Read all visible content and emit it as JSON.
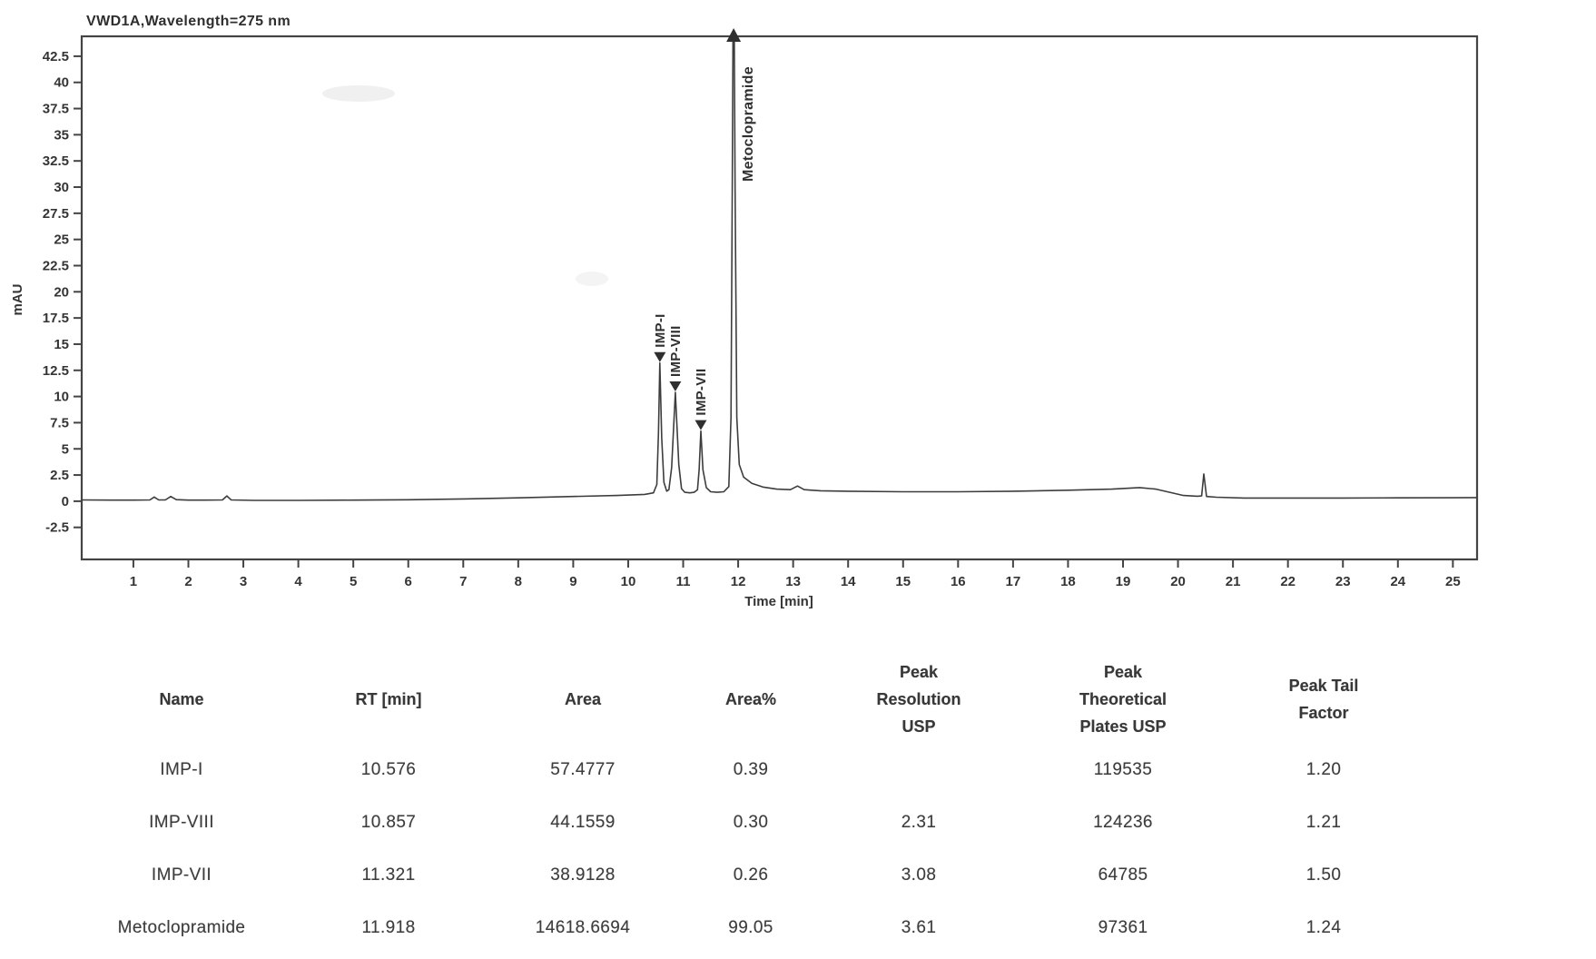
{
  "chart_data": {
    "type": "line",
    "title": "VWD1A,Wavelength=275 nm",
    "xlabel": "Time [min]",
    "ylabel": "mAU",
    "x_domain": [
      0.06,
      25.44
    ],
    "y_domain": [
      -5.56,
      44.4
    ],
    "x_ticks": [
      1,
      2,
      3,
      4,
      5,
      6,
      7,
      8,
      9,
      10,
      11,
      12,
      13,
      14,
      15,
      16,
      17,
      18,
      19,
      20,
      21,
      22,
      23,
      24,
      25
    ],
    "y_ticks": [
      -2.5,
      0,
      2.5,
      5,
      7.5,
      10,
      12.5,
      15,
      17.5,
      20,
      22.5,
      25,
      27.5,
      30,
      32.5,
      35,
      37.5,
      40,
      42.5
    ],
    "grid": false,
    "legend": "none",
    "trace": [
      [
        0.06,
        0.12
      ],
      [
        0.6,
        0.1
      ],
      [
        1.0,
        0.1
      ],
      [
        1.3,
        0.12
      ],
      [
        1.38,
        0.4
      ],
      [
        1.46,
        0.12
      ],
      [
        1.58,
        0.12
      ],
      [
        1.68,
        0.45
      ],
      [
        1.78,
        0.15
      ],
      [
        2.0,
        0.1
      ],
      [
        2.3,
        0.1
      ],
      [
        2.62,
        0.12
      ],
      [
        2.7,
        0.5
      ],
      [
        2.78,
        0.12
      ],
      [
        3.2,
        0.08
      ],
      [
        4.0,
        0.08
      ],
      [
        5.0,
        0.1
      ],
      [
        6.0,
        0.14
      ],
      [
        7.0,
        0.22
      ],
      [
        8.0,
        0.32
      ],
      [
        9.0,
        0.45
      ],
      [
        9.8,
        0.55
      ],
      [
        10.3,
        0.65
      ],
      [
        10.46,
        0.8
      ],
      [
        10.52,
        1.6
      ],
      [
        10.55,
        6.5
      ],
      [
        10.576,
        13.2
      ],
      [
        10.61,
        6.0
      ],
      [
        10.65,
        1.8
      ],
      [
        10.7,
        0.95
      ],
      [
        10.74,
        1.1
      ],
      [
        10.79,
        3.2
      ],
      [
        10.857,
        10.4
      ],
      [
        10.92,
        3.5
      ],
      [
        10.97,
        1.2
      ],
      [
        11.03,
        0.85
      ],
      [
        11.12,
        0.8
      ],
      [
        11.2,
        0.85
      ],
      [
        11.26,
        1.1
      ],
      [
        11.29,
        3.0
      ],
      [
        11.321,
        6.7
      ],
      [
        11.36,
        3.0
      ],
      [
        11.42,
        1.3
      ],
      [
        11.5,
        0.9
      ],
      [
        11.62,
        0.85
      ],
      [
        11.74,
        0.9
      ],
      [
        11.83,
        1.4
      ],
      [
        11.87,
        8.0
      ],
      [
        11.893,
        30
      ],
      [
        11.906,
        46
      ],
      [
        11.93,
        46
      ],
      [
        11.945,
        30
      ],
      [
        11.975,
        8.0
      ],
      [
        12.02,
        3.5
      ],
      [
        12.1,
        2.3
      ],
      [
        12.25,
        1.7
      ],
      [
        12.45,
        1.35
      ],
      [
        12.7,
        1.15
      ],
      [
        12.95,
        1.1
      ],
      [
        13.08,
        1.45
      ],
      [
        13.2,
        1.1
      ],
      [
        13.5,
        1.0
      ],
      [
        14.0,
        0.95
      ],
      [
        15.0,
        0.9
      ],
      [
        16.0,
        0.9
      ],
      [
        17.0,
        0.95
      ],
      [
        18.0,
        1.05
      ],
      [
        18.8,
        1.15
      ],
      [
        19.3,
        1.3
      ],
      [
        19.6,
        1.15
      ],
      [
        19.85,
        0.85
      ],
      [
        20.1,
        0.55
      ],
      [
        20.35,
        0.48
      ],
      [
        20.43,
        0.5
      ],
      [
        20.47,
        2.6
      ],
      [
        20.52,
        0.45
      ],
      [
        20.7,
        0.38
      ],
      [
        21.2,
        0.3
      ],
      [
        22.0,
        0.3
      ],
      [
        23.0,
        0.3
      ],
      [
        24.0,
        0.32
      ],
      [
        25.0,
        0.33
      ],
      [
        25.42,
        0.35
      ]
    ],
    "peaks": [
      {
        "name": "IMP-I",
        "rt": 10.576,
        "apex_mau": 13.2,
        "marker": "down"
      },
      {
        "name": "IMP-VIII",
        "rt": 10.857,
        "apex_mau": 10.4,
        "marker": "down"
      },
      {
        "name": "IMP-VII",
        "rt": 11.321,
        "apex_mau": 6.7,
        "marker": "down"
      },
      {
        "name": "Metoclopramide",
        "rt": 11.918,
        "apex_mau": 44.4,
        "marker": "up",
        "clipped_at_top": true
      }
    ]
  },
  "table": {
    "columns": [
      {
        "id": "name",
        "lines": [
          "Name"
        ]
      },
      {
        "id": "rt",
        "lines": [
          "RT [min]"
        ]
      },
      {
        "id": "area",
        "lines": [
          "Area"
        ]
      },
      {
        "id": "area-pct",
        "lines": [
          "Area%"
        ]
      },
      {
        "id": "resolution",
        "lines": [
          "Peak",
          "Resolution",
          "USP"
        ]
      },
      {
        "id": "plates",
        "lines": [
          "Peak",
          "Theoretical",
          "Plates USP"
        ]
      },
      {
        "id": "tail",
        "lines": [
          "Peak Tail",
          "Factor"
        ]
      }
    ],
    "rows": [
      {
        "cells": [
          "IMP-I",
          "10.576",
          "57.4777",
          "0.39",
          "",
          "119535",
          "1.20"
        ]
      },
      {
        "cells": [
          "IMP-VIII",
          "10.857",
          "44.1559",
          "0.30",
          "2.31",
          "124236",
          "1.21"
        ]
      },
      {
        "cells": [
          "IMP-VII",
          "11.321",
          "38.9128",
          "0.26",
          "3.08",
          "64785",
          "1.50"
        ]
      },
      {
        "cells": [
          "Metoclopramide",
          "11.918",
          "14618.6694",
          "99.05",
          "3.61",
          "97361",
          "1.24"
        ]
      }
    ]
  },
  "colors": {
    "ink": "#2f2f2f",
    "trace": "#3d3d3d",
    "frame": "#444444"
  }
}
